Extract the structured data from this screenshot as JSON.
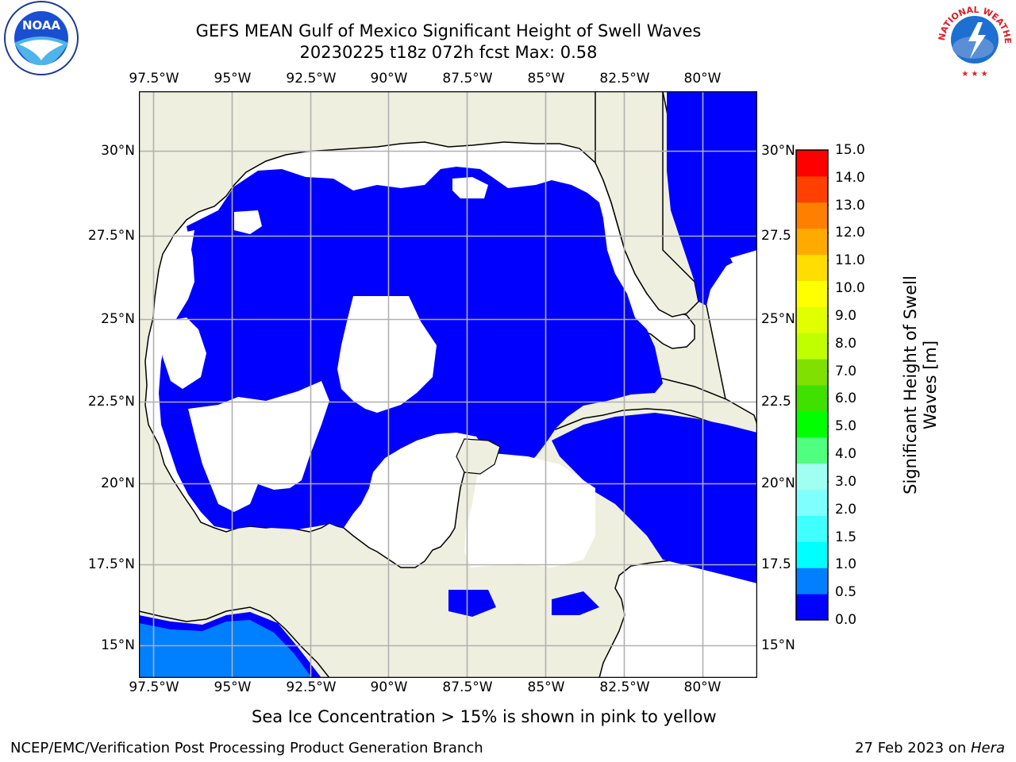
{
  "title": {
    "line1": "GEFS MEAN Gulf of Mexico Significant Height of Swell Waves",
    "line2": "20230225 t18z 072h fcst   Max: 0.58"
  },
  "map": {
    "lon_labels": [
      "97.5°W",
      "95°W",
      "92.5°W",
      "90°W",
      "87.5°W",
      "85°W",
      "82.5°W",
      "80°W"
    ],
    "lat_labels": [
      "30°N",
      "27.5°N",
      "25°N",
      "22.5°N",
      "20°N",
      "17.5°N",
      "15°N"
    ],
    "lat_labels_right": [
      "30°N",
      "27.5",
      "25°N",
      "22.5",
      "20°N",
      "17.5",
      "15°N"
    ],
    "colors": {
      "land": "#efefdf",
      "swell_0_05": "#0000ff",
      "swell_05_10": "#0080ff",
      "no_data": "#ffffff",
      "grid": "#b0b0b0"
    }
  },
  "colorbar": {
    "label_line1": "Significant Height of Swell",
    "label_line2": "Waves [m]",
    "ticks": [
      "0.0",
      "0.5",
      "1.0",
      "1.5",
      "2.0",
      "3.0",
      "4.0",
      "5.0",
      "6.0",
      "7.0",
      "8.0",
      "9.0",
      "10.0",
      "11.0",
      "12.0",
      "13.0",
      "14.0",
      "15.0"
    ],
    "colors": [
      "#0000ff",
      "#0080ff",
      "#00ffff",
      "#40ffff",
      "#80ffff",
      "#a0fff0",
      "#50ff80",
      "#00ff00",
      "#40e000",
      "#80e000",
      "#c0ff00",
      "#e0ff00",
      "#ffff00",
      "#ffdd00",
      "#ffaa00",
      "#ff8000",
      "#ff4000",
      "#ff0000"
    ]
  },
  "note": "Sea Ice Concentration > 15% is shown in pink to yellow",
  "footer": {
    "left": "NCEP/EMC/Verification Post Processing Product Generation Branch",
    "right_prefix": "27 Feb 2023 on ",
    "right_host": "Hera"
  },
  "logos": {
    "noaa": "NOAA",
    "nws_text": "NATIONAL WEATHER SERVICE"
  }
}
